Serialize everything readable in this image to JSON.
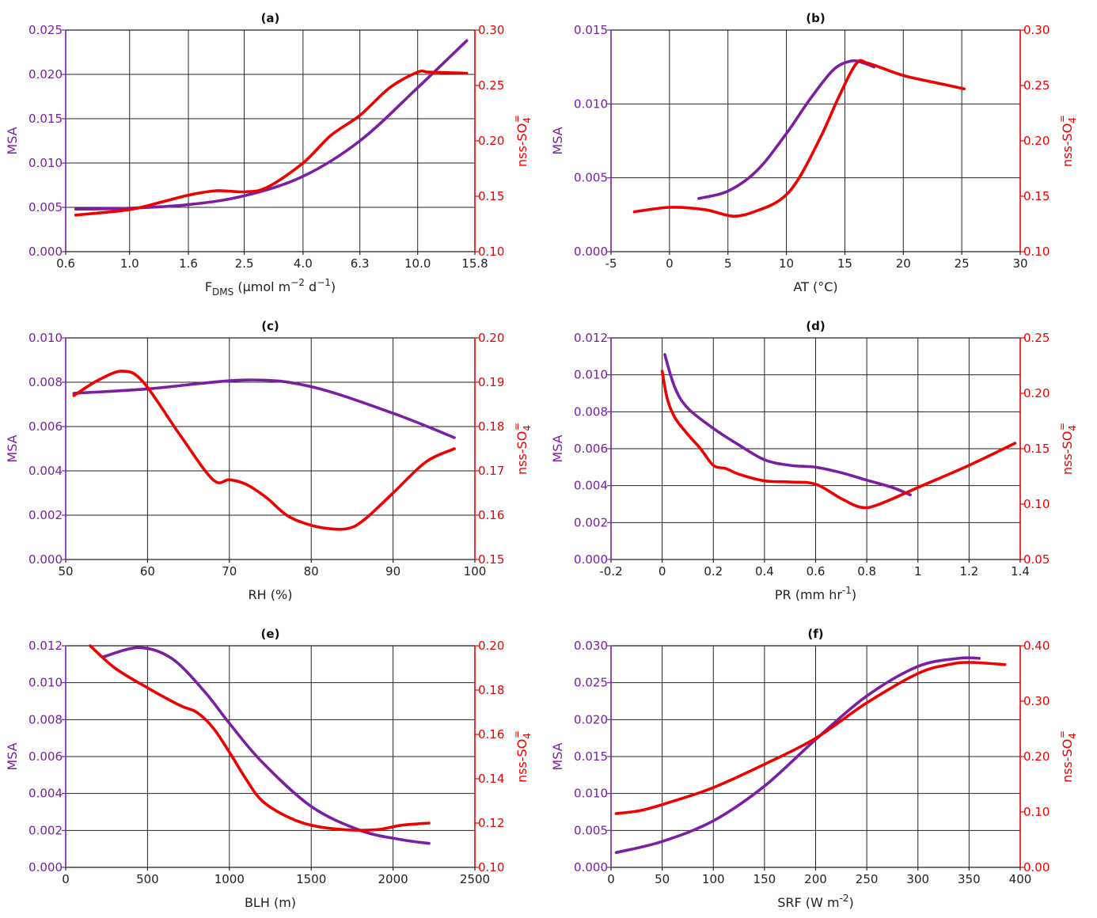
{
  "colors": {
    "msa": "#7a1fa2",
    "nss": "#ee0000",
    "grid": "#222222",
    "axis": "#222222"
  },
  "chart_data": [
    {
      "type": "line",
      "title": "(a)",
      "xlabel": "F_DMS (μmol m^-2 d^-1)",
      "xlabel_parts": {
        "main": "F",
        "sub": "DMS",
        "unit_a": " (μmol m",
        "sup_a": "−2",
        "unit_b": " d",
        "sup_b": "−1",
        "unit_c": ")"
      },
      "ylabel_left": "MSA",
      "ylabel_right": "nss-SO4=",
      "x_scale": "log",
      "xlim": [
        0.6,
        15.8
      ],
      "xticks": [
        0.6,
        1.0,
        1.6,
        2.5,
        4.0,
        6.3,
        10.0,
        15.8
      ],
      "xtick_labels": [
        "0.6",
        "1.0",
        "1.6",
        "2.5",
        "4.0",
        "6.3",
        "10.0",
        "15.8"
      ],
      "ylim_left": [
        0,
        0.025
      ],
      "yticks_left": [
        "0.000",
        "0.005",
        "0.010",
        "0.015",
        "0.020",
        "0.025"
      ],
      "ylim_right": [
        0.1,
        0.3
      ],
      "yticks_right": [
        "0.10",
        "0.15",
        "0.20",
        "0.25",
        "0.30"
      ],
      "grid": true,
      "series": [
        {
          "axis": "left",
          "x": [
            0.65,
            1.0,
            1.6,
            2.5,
            4.0,
            6.3,
            10.0,
            14.8
          ],
          "y": [
            0.0048,
            0.0049,
            0.0053,
            0.0063,
            0.0085,
            0.0125,
            0.0185,
            0.0238
          ]
        },
        {
          "axis": "right",
          "x": [
            0.65,
            1.0,
            1.3,
            1.6,
            2.0,
            2.5,
            3.0,
            4.0,
            5.0,
            6.3,
            8.0,
            10.0,
            11.0,
            14.8
          ],
          "y": [
            0.133,
            0.138,
            0.145,
            0.151,
            0.155,
            0.154,
            0.158,
            0.18,
            0.205,
            0.223,
            0.248,
            0.262,
            0.262,
            0.261
          ]
        }
      ]
    },
    {
      "type": "line",
      "title": "(b)",
      "xlabel": "AT (°C)",
      "ylabel_left": "MSA",
      "ylabel_right": "nss-SO4=",
      "x_scale": "linear",
      "xlim": [
        -5,
        30
      ],
      "xticks": [
        -5,
        0,
        5,
        10,
        15,
        20,
        25,
        30
      ],
      "xtick_labels": [
        "-5",
        "0",
        "5",
        "10",
        "15",
        "20",
        "25",
        "30"
      ],
      "ylim_left": [
        0,
        0.015
      ],
      "yticks_left": [
        "0.000",
        "0.005",
        "0.010",
        "0.015"
      ],
      "ylim_right": [
        0.1,
        0.3
      ],
      "yticks_right": [
        "0.10",
        "0.15",
        "0.20",
        "0.25",
        "0.30"
      ],
      "grid": true,
      "series": [
        {
          "axis": "left",
          "x": [
            2.5,
            5,
            7.5,
            10,
            12,
            14,
            15.5,
            16.5,
            17.5
          ],
          "y": [
            0.0036,
            0.0041,
            0.0055,
            0.008,
            0.0103,
            0.0123,
            0.0129,
            0.0128,
            0.0125
          ]
        },
        {
          "axis": "right",
          "x": [
            -3,
            0,
            3,
            5.5,
            7.5,
            9.5,
            11,
            13,
            14.5,
            16,
            17,
            20,
            23,
            25.2
          ],
          "y": [
            0.136,
            0.14,
            0.138,
            0.132,
            0.137,
            0.147,
            0.165,
            0.205,
            0.24,
            0.27,
            0.27,
            0.259,
            0.252,
            0.247
          ]
        }
      ]
    },
    {
      "type": "line",
      "title": "(c)",
      "xlabel": "RH (%)",
      "ylabel_left": "MSA",
      "ylabel_right": "nss-SO4=",
      "x_scale": "linear",
      "xlim": [
        50,
        100
      ],
      "xticks": [
        50,
        60,
        70,
        80,
        90,
        100
      ],
      "xtick_labels": [
        "50",
        "60",
        "70",
        "80",
        "90",
        "100"
      ],
      "ylim_left": [
        0,
        0.01
      ],
      "yticks_left": [
        "0.000",
        "0.002",
        "0.004",
        "0.006",
        "0.008",
        "0.010"
      ],
      "ylim_right": [
        0.15,
        0.2
      ],
      "yticks_right": [
        "0.15",
        "0.16",
        "0.17",
        "0.18",
        "0.19",
        "0.20"
      ],
      "grid": true,
      "series": [
        {
          "axis": "left",
          "x": [
            51,
            60,
            72,
            80,
            90,
            97.5
          ],
          "y": [
            0.0075,
            0.0077,
            0.0081,
            0.0078,
            0.0066,
            0.0055
          ]
        },
        {
          "axis": "right",
          "x": [
            51,
            54,
            57,
            59.5,
            64,
            68,
            70,
            72,
            74.5,
            77,
            79.5,
            82,
            84.5,
            86.5,
            90,
            94,
            97.5
          ],
          "y": [
            0.187,
            0.1905,
            0.1925,
            0.19,
            0.178,
            0.168,
            0.168,
            0.167,
            0.164,
            0.16,
            0.158,
            0.157,
            0.157,
            0.159,
            0.165,
            0.172,
            0.175
          ]
        }
      ]
    },
    {
      "type": "line",
      "title": "(d)",
      "xlabel": "PR (mm hr^-1)",
      "xlabel_parts": {
        "main": "PR (mm hr",
        "sup": "-1",
        "tail": ")"
      },
      "ylabel_left": "MSA",
      "ylabel_right": "nss-SO4=",
      "x_scale": "linear",
      "xlim": [
        -0.2,
        1.4
      ],
      "xticks": [
        -0.2,
        0,
        0.2,
        0.4,
        0.6,
        0.8,
        1.0,
        1.2,
        1.4
      ],
      "xtick_labels": [
        "-0.2",
        "0",
        "0.2",
        "0.4",
        "0.6",
        "0.8",
        "1",
        "1.2",
        "1.4"
      ],
      "ylim_left": [
        0,
        0.012
      ],
      "yticks_left": [
        "0.000",
        "0.002",
        "0.004",
        "0.006",
        "0.008",
        "0.010",
        "0.012"
      ],
      "ylim_right": [
        0.05,
        0.25
      ],
      "yticks_right": [
        "0.05",
        "0.10",
        "0.15",
        "0.20",
        "0.25"
      ],
      "grid": true,
      "series": [
        {
          "axis": "left",
          "x": [
            0.01,
            0.05,
            0.1,
            0.2,
            0.3,
            0.4,
            0.5,
            0.6,
            0.7,
            0.8,
            0.9,
            0.97
          ],
          "y": [
            0.0111,
            0.0093,
            0.0082,
            0.0071,
            0.0062,
            0.0054,
            0.0051,
            0.005,
            0.0047,
            0.0043,
            0.0039,
            0.0035
          ]
        },
        {
          "axis": "right",
          "x": [
            0.0,
            0.02,
            0.05,
            0.1,
            0.15,
            0.2,
            0.25,
            0.3,
            0.4,
            0.5,
            0.6,
            0.7,
            0.78,
            0.85,
            1.0,
            1.2,
            1.38
          ],
          "y": [
            0.22,
            0.195,
            0.178,
            0.163,
            0.15,
            0.135,
            0.132,
            0.127,
            0.121,
            0.12,
            0.118,
            0.105,
            0.097,
            0.1,
            0.115,
            0.135,
            0.155
          ]
        }
      ]
    },
    {
      "type": "line",
      "title": "(e)",
      "xlabel": "BLH (m)",
      "ylabel_left": "MSA",
      "ylabel_right": "nss-SO4=",
      "x_scale": "linear",
      "xlim": [
        0,
        2500
      ],
      "xticks": [
        0,
        500,
        1000,
        1500,
        2000,
        2500
      ],
      "xtick_labels": [
        "0",
        "500",
        "1000",
        "1500",
        "2000",
        "2500"
      ],
      "ylim_left": [
        0,
        0.012
      ],
      "yticks_left": [
        "0.000",
        "0.002",
        "0.004",
        "0.006",
        "0.008",
        "0.010",
        "0.012"
      ],
      "ylim_right": [
        0.1,
        0.2
      ],
      "yticks_right": [
        "0.10",
        "0.12",
        "0.14",
        "0.16",
        "0.18",
        "0.20"
      ],
      "grid": true,
      "series": [
        {
          "axis": "left",
          "x": [
            230,
            450,
            650,
            850,
            1000,
            1200,
            1500,
            1800,
            2050,
            2220
          ],
          "y": [
            0.0114,
            0.0119,
            0.0113,
            0.0095,
            0.0078,
            0.0057,
            0.0033,
            0.002,
            0.0015,
            0.0013
          ]
        },
        {
          "axis": "right",
          "x": [
            150,
            300,
            500,
            700,
            800,
            900,
            1000,
            1100,
            1200,
            1350,
            1500,
            1700,
            1900,
            2050,
            2220
          ],
          "y": [
            0.2,
            0.19,
            0.181,
            0.173,
            0.17,
            0.163,
            0.152,
            0.14,
            0.13,
            0.123,
            0.119,
            0.117,
            0.117,
            0.119,
            0.12
          ]
        }
      ]
    },
    {
      "type": "line",
      "title": "(f)",
      "xlabel": "SRF (W m^-2)",
      "xlabel_parts": {
        "main": "SRF (W m",
        "sup": "-2",
        "tail": ")"
      },
      "ylabel_left": "MSA",
      "ylabel_right": "nss-SO4=",
      "x_scale": "linear",
      "xlim": [
        0,
        400
      ],
      "xticks": [
        0,
        50,
        100,
        150,
        200,
        250,
        300,
        350,
        400
      ],
      "xtick_labels": [
        "0",
        "50",
        "100",
        "150",
        "200",
        "250",
        "300",
        "350",
        "400"
      ],
      "ylim_left": [
        0,
        0.03
      ],
      "yticks_left": [
        "0.000",
        "0.005",
        "0.010",
        "0.015",
        "0.020",
        "0.025",
        "0.030"
      ],
      "ylim_right": [
        0.0,
        0.4
      ],
      "yticks_right": [
        "0.00",
        "0.10",
        "0.20",
        "0.30",
        "0.40"
      ],
      "grid": true,
      "series": [
        {
          "axis": "left",
          "x": [
            5,
            50,
            100,
            150,
            200,
            250,
            300,
            340,
            360
          ],
          "y": [
            0.002,
            0.0035,
            0.0063,
            0.011,
            0.0173,
            0.0232,
            0.0272,
            0.0283,
            0.0283
          ]
        },
        {
          "axis": "right",
          "x": [
            5,
            30,
            60,
            100,
            150,
            200,
            250,
            300,
            330,
            350,
            385
          ],
          "y": [
            0.097,
            0.103,
            0.119,
            0.144,
            0.186,
            0.233,
            0.297,
            0.35,
            0.366,
            0.37,
            0.366
          ]
        }
      ]
    }
  ]
}
